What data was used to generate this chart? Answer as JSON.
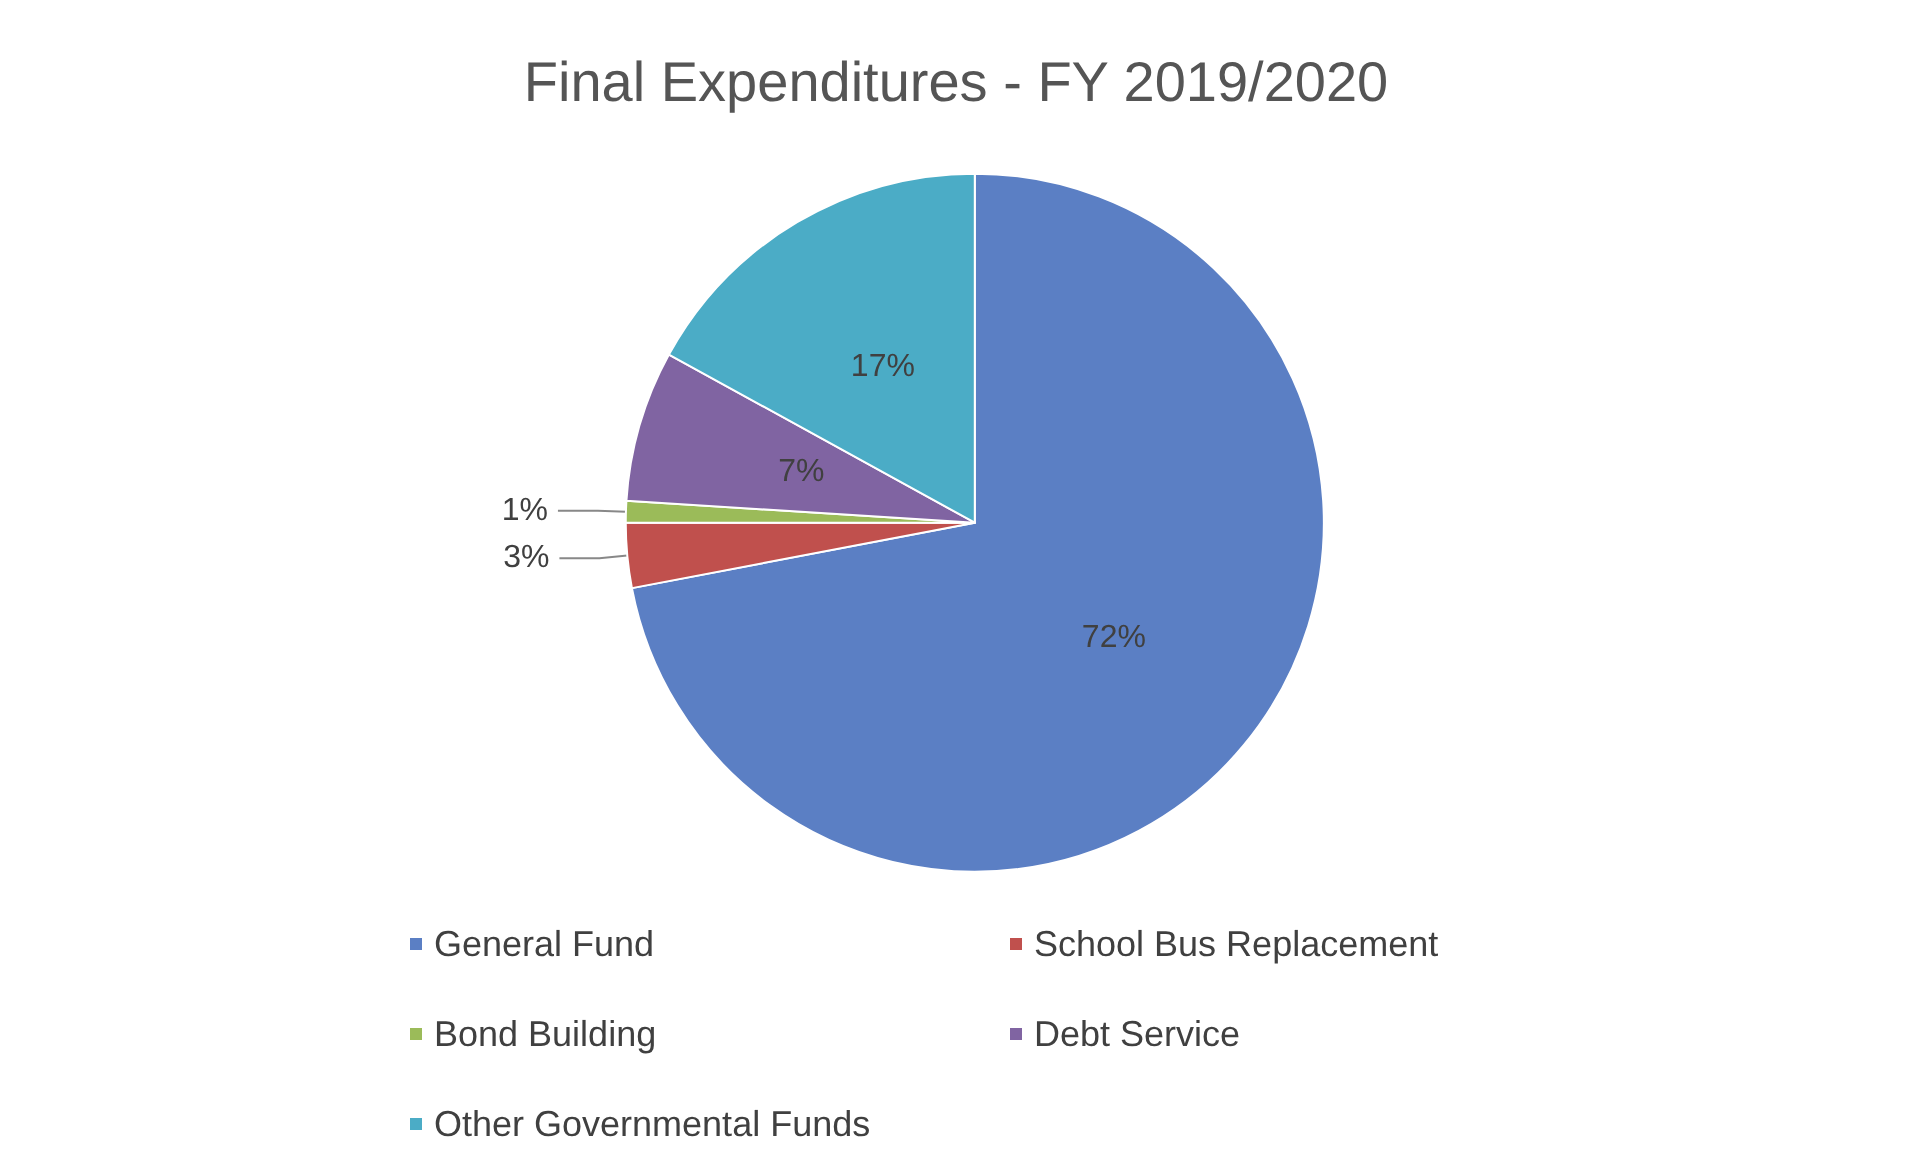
{
  "chart_data": {
    "type": "pie",
    "title": "Final Expenditures - FY 2019/2020",
    "categories": [
      "General Fund",
      "School Bus Replacement",
      "Bond Building",
      "Debt Service",
      "Other Governmental Funds"
    ],
    "values": [
      72,
      3,
      1,
      7,
      17
    ],
    "colors": [
      "#5b7fc4",
      "#c0504d",
      "#9bbb59",
      "#8064a2",
      "#4bacc6"
    ],
    "value_labels": [
      "72%",
      "3%",
      "1%",
      "7%",
      "17%"
    ],
    "legend": "bottom"
  }
}
